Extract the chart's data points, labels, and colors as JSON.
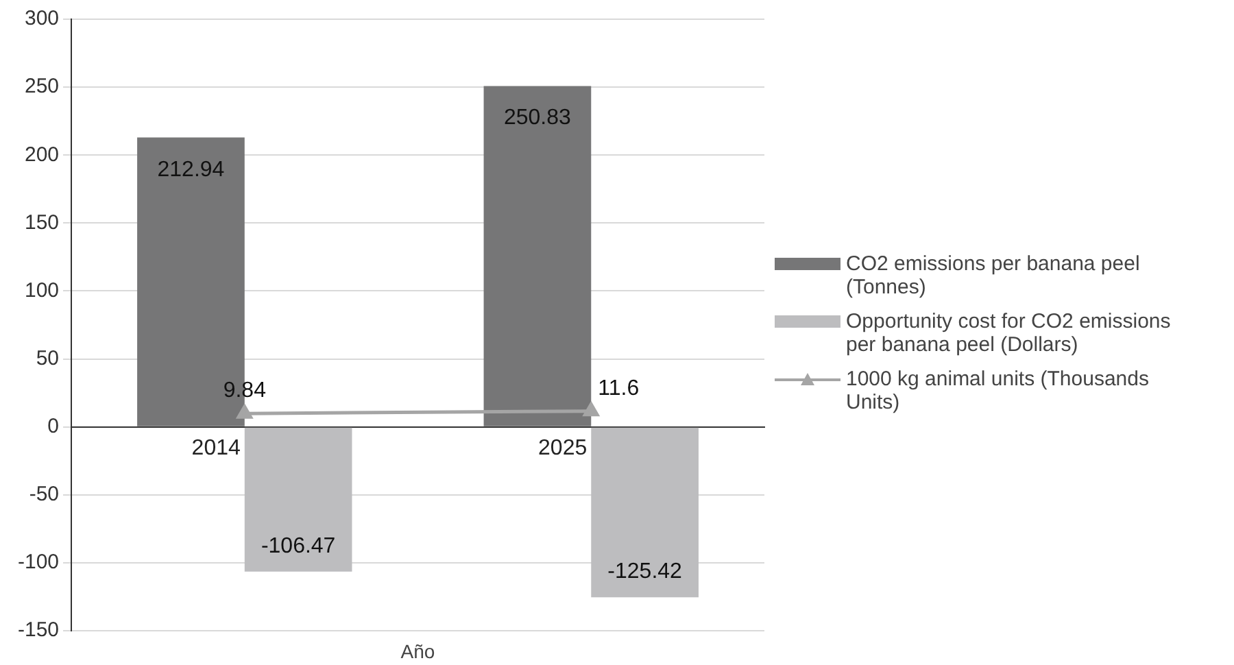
{
  "chart_data": {
    "type": "bar",
    "xlabel": "Año",
    "categories": [
      "2014",
      "2025"
    ],
    "series": [
      {
        "name": "CO2 emissions per banana peel (Tonnes)",
        "color": "#767677",
        "values": [
          212.94,
          250.83
        ]
      },
      {
        "name": "Opportunity cost for CO2 emissions per banana peel (Dollars)",
        "color": "#bdbdbf",
        "values": [
          -106.47,
          -125.42
        ]
      },
      {
        "name": "1000 kg animal units (Thousands Units)",
        "type": "line",
        "marker": "triangle",
        "color": "#a5a5a5",
        "values": [
          9.84,
          11.6
        ]
      }
    ],
    "ylim": [
      -150,
      300
    ],
    "yticks": [
      -150,
      -100,
      -50,
      0,
      50,
      100,
      150,
      200,
      250,
      300
    ],
    "grid": "y",
    "legend": "right",
    "data_labels": true
  }
}
